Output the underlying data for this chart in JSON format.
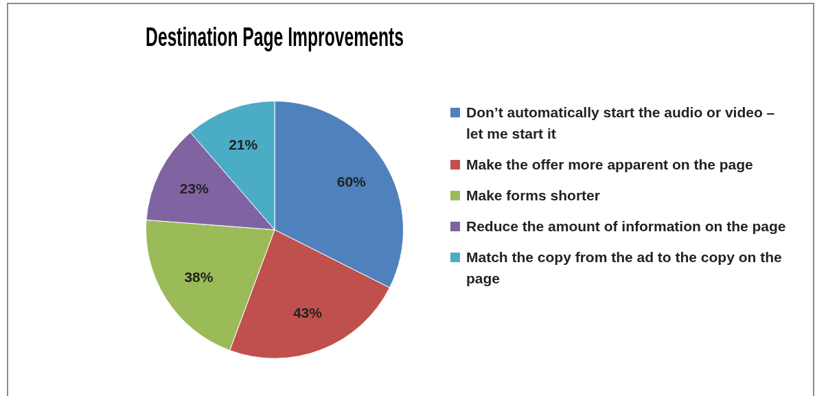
{
  "chart_data": {
    "type": "pie",
    "title": "Destination Page Improvements",
    "categories": [
      "Don’t automatically start the audio or video – let me start it",
      "Make the offer more apparent on the page",
      "Make forms shorter",
      "Reduce the amount of information on the page",
      "Match the copy from the ad to the copy on the page"
    ],
    "values": [
      60,
      43,
      38,
      23,
      21
    ],
    "colors": [
      "#4f81bd",
      "#c0504d",
      "#9bbb59",
      "#8064a2",
      "#4bacc6"
    ],
    "value_labels": [
      "60%",
      "43%",
      "38%",
      "23%",
      "21%"
    ],
    "legend": "right"
  }
}
